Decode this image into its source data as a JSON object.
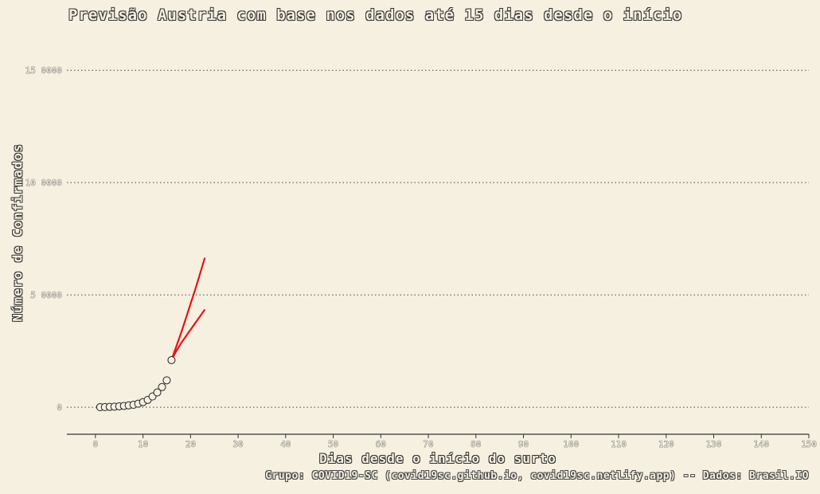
{
  "chart_data": {
    "type": "scatter",
    "title": "Previsão Austria com base nos dados até 15 dias desde o início",
    "xlabel": "Dias desde o início do surto",
    "ylabel": "Número de Confirmados",
    "caption": "Grupo: COVID19-SC (covid19sc.github.io, covid19sc.netlify.app)   --   Dados: Brasil.IO",
    "xlim": [
      -6,
      150
    ],
    "ylim": [
      -1200,
      16000
    ],
    "x_ticks": [
      0,
      10,
      20,
      30,
      40,
      50,
      60,
      70,
      80,
      90,
      100,
      110,
      120,
      130,
      140,
      150
    ],
    "x_tick_labels": [
      "0",
      "10",
      "20",
      "30",
      "40",
      "50",
      "60",
      "70",
      "80",
      "90",
      "100",
      "110",
      "120",
      "130",
      "140",
      "150"
    ],
    "y_ticks": [
      0,
      5000,
      10000,
      15000
    ],
    "y_tick_labels": [
      "0",
      "5 0000",
      "10 0000",
      "15 0000"
    ],
    "grid": "horizontal dotted",
    "series": [
      {
        "kind": "points",
        "x": [
          1,
          2,
          3,
          4,
          5,
          6,
          7,
          8,
          9,
          10,
          11,
          12,
          13,
          14,
          15,
          16
        ],
        "y": [
          5,
          10,
          18,
          28,
          42,
          60,
          85,
          110,
          160,
          230,
          330,
          480,
          660,
          900,
          1200,
          2100
        ]
      },
      {
        "kind": "line",
        "color": "#ee1111",
        "x": [
          16,
          17,
          18,
          19,
          20,
          21,
          22,
          23
        ],
        "y": [
          2100,
          2500,
          2850,
          3150,
          3450,
          3750,
          4050,
          4350
        ]
      },
      {
        "kind": "line",
        "color": "#ee1111",
        "x": [
          16,
          17,
          18,
          19,
          20,
          21,
          22,
          23
        ],
        "y": [
          2100,
          2700,
          3300,
          3950,
          4600,
          5250,
          5950,
          6650
        ]
      }
    ]
  }
}
